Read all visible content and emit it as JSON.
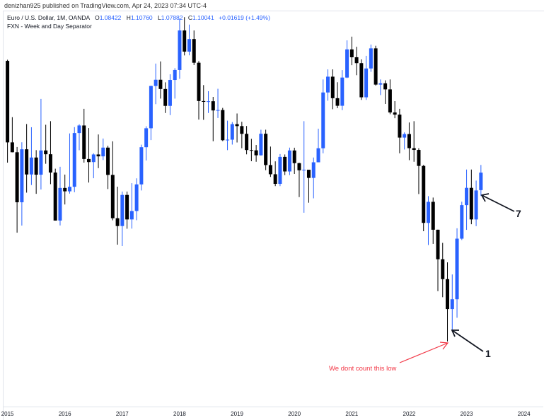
{
  "publisher_line": "denizhan925 published on TradingView.com, Apr 24, 2023 07:34 UTC-4",
  "legend": {
    "symbol": "Euro / U.S. Dollar, 1M, OANDA",
    "open_label": "O",
    "open": "1.08422",
    "high_label": "H",
    "high": "1.10760",
    "low_label": "L",
    "low": "1.07882",
    "close_label": "C",
    "close": "1.10041",
    "change": "+0.01619 (+1.49%)",
    "indicator": "FXN - Week and Day Separator"
  },
  "annotations": {
    "red_note": "We dont count this low",
    "label_1": "1",
    "label_7": "7"
  },
  "colors": {
    "up": "#2962ff",
    "down": "#000000",
    "note": "#f23645",
    "arrow": "#131722"
  },
  "chart_data": {
    "type": "candlestick",
    "yscale": "log",
    "grid": false,
    "x_tick_labels": [
      "2015",
      "2016",
      "2017",
      "2018",
      "2019",
      "2020",
      "2021",
      "2022",
      "2023",
      "2024"
    ],
    "dates": [
      "2015-01",
      "2015-02",
      "2015-03",
      "2015-04",
      "2015-05",
      "2015-06",
      "2015-07",
      "2015-08",
      "2015-09",
      "2015-10",
      "2015-11",
      "2015-12",
      "2016-01",
      "2016-02",
      "2016-03",
      "2016-04",
      "2016-05",
      "2016-06",
      "2016-07",
      "2016-08",
      "2016-09",
      "2016-10",
      "2016-11",
      "2016-12",
      "2017-01",
      "2017-02",
      "2017-03",
      "2017-04",
      "2017-05",
      "2017-06",
      "2017-07",
      "2017-08",
      "2017-09",
      "2017-10",
      "2017-11",
      "2017-12",
      "2018-01",
      "2018-02",
      "2018-03",
      "2018-04",
      "2018-05",
      "2018-06",
      "2018-07",
      "2018-08",
      "2018-09",
      "2018-10",
      "2018-11",
      "2018-12",
      "2019-01",
      "2019-02",
      "2019-03",
      "2019-04",
      "2019-05",
      "2019-06",
      "2019-07",
      "2019-08",
      "2019-09",
      "2019-10",
      "2019-11",
      "2019-12",
      "2020-01",
      "2020-02",
      "2020-03",
      "2020-04",
      "2020-05",
      "2020-06",
      "2020-07",
      "2020-08",
      "2020-09",
      "2020-10",
      "2020-11",
      "2020-12",
      "2021-01",
      "2021-02",
      "2021-03",
      "2021-04",
      "2021-05",
      "2021-06",
      "2021-07",
      "2021-08",
      "2021-09",
      "2021-10",
      "2021-11",
      "2021-12",
      "2022-01",
      "2022-02",
      "2022-03",
      "2022-04",
      "2022-05",
      "2022-06",
      "2022-07",
      "2022-08",
      "2022-09",
      "2022-10",
      "2022-11",
      "2022-12",
      "2023-01",
      "2023-02",
      "2023-03",
      "2023-04"
    ],
    "ohlc": [
      [
        1.2098,
        1.2109,
        1.1098,
        1.129
      ],
      [
        1.129,
        1.1534,
        1.1195,
        1.1196
      ],
      [
        1.1196,
        1.1246,
        1.0458,
        1.0731
      ],
      [
        1.0731,
        1.1291,
        1.0521,
        1.1224
      ],
      [
        1.1224,
        1.1467,
        1.0819,
        1.0987
      ],
      [
        1.0987,
        1.1436,
        1.0889,
        1.1146
      ],
      [
        1.1146,
        1.1216,
        1.0808,
        1.0985
      ],
      [
        1.0985,
        1.1714,
        1.0848,
        1.1213
      ],
      [
        1.1213,
        1.146,
        1.1087,
        1.1177
      ],
      [
        1.1177,
        1.1495,
        1.0897,
        1.1005
      ],
      [
        1.1005,
        1.1041,
        1.0566,
        1.0566
      ],
      [
        1.0566,
        1.1059,
        1.0522,
        1.0862
      ],
      [
        1.0862,
        1.0986,
        1.0711,
        1.0831
      ],
      [
        1.0831,
        1.1376,
        1.081,
        1.0873
      ],
      [
        1.0873,
        1.1437,
        1.0823,
        1.138
      ],
      [
        1.138,
        1.1465,
        1.1215,
        1.1453
      ],
      [
        1.1453,
        1.1616,
        1.1098,
        1.1132
      ],
      [
        1.1132,
        1.1428,
        1.0912,
        1.1103
      ],
      [
        1.1103,
        1.1186,
        1.0952,
        1.1175
      ],
      [
        1.1175,
        1.1366,
        1.1046,
        1.1157
      ],
      [
        1.1157,
        1.1327,
        1.1122,
        1.124
      ],
      [
        1.124,
        1.1258,
        1.0852,
        1.0983
      ],
      [
        1.0983,
        1.13,
        1.0568,
        1.0587
      ],
      [
        1.0587,
        1.0874,
        1.0352,
        1.0517
      ],
      [
        1.0517,
        1.0829,
        1.034,
        1.0798
      ],
      [
        1.0798,
        1.0829,
        1.0493,
        1.0576
      ],
      [
        1.0576,
        1.0906,
        1.0494,
        1.0652
      ],
      [
        1.0652,
        1.0951,
        1.0569,
        1.0895
      ],
      [
        1.0895,
        1.1268,
        1.0839,
        1.1244
      ],
      [
        1.1244,
        1.1445,
        1.1118,
        1.1426
      ],
      [
        1.1426,
        1.1846,
        1.1312,
        1.1843
      ],
      [
        1.1843,
        1.207,
        1.1662,
        1.1906
      ],
      [
        1.1906,
        1.2092,
        1.1717,
        1.1813
      ],
      [
        1.1813,
        1.188,
        1.1575,
        1.1645
      ],
      [
        1.1645,
        1.1961,
        1.1554,
        1.1904
      ],
      [
        1.1904,
        1.2023,
        1.1717,
        1.2005
      ],
      [
        1.2005,
        1.2537,
        1.1915,
        1.2414
      ],
      [
        1.2414,
        1.2555,
        1.2154,
        1.2193
      ],
      [
        1.2193,
        1.2476,
        1.2155,
        1.2324
      ],
      [
        1.2324,
        1.2414,
        1.2055,
        1.2079
      ],
      [
        1.2079,
        1.2096,
        1.151,
        1.1693
      ],
      [
        1.1693,
        1.1852,
        1.1508,
        1.1685
      ],
      [
        1.1685,
        1.1791,
        1.1575,
        1.1691
      ],
      [
        1.1691,
        1.1734,
        1.1301,
        1.16
      ],
      [
        1.16,
        1.1815,
        1.1526,
        1.1604
      ],
      [
        1.1604,
        1.1625,
        1.1302,
        1.1311
      ],
      [
        1.1311,
        1.15,
        1.1216,
        1.1316
      ],
      [
        1.1316,
        1.1486,
        1.1269,
        1.1466
      ],
      [
        1.1466,
        1.157,
        1.1289,
        1.1447
      ],
      [
        1.1447,
        1.1489,
        1.1234,
        1.1372
      ],
      [
        1.1372,
        1.1448,
        1.1176,
        1.1217
      ],
      [
        1.1217,
        1.1324,
        1.1111,
        1.1214
      ],
      [
        1.1214,
        1.1265,
        1.1106,
        1.1167
      ],
      [
        1.1167,
        1.1412,
        1.1164,
        1.1373
      ],
      [
        1.1373,
        1.1412,
        1.1027,
        1.1075
      ],
      [
        1.1075,
        1.125,
        1.0964,
        1.0989
      ],
      [
        1.0989,
        1.111,
        1.0879,
        1.09
      ],
      [
        1.09,
        1.1179,
        1.0879,
        1.1152
      ],
      [
        1.1152,
        1.1175,
        1.0981,
        1.1015
      ],
      [
        1.1015,
        1.124,
        1.0981,
        1.1213
      ],
      [
        1.1213,
        1.1239,
        1.0992,
        1.1093
      ],
      [
        1.1093,
        1.1097,
        1.0778,
        1.1026
      ],
      [
        1.1026,
        1.1495,
        1.0636,
        1.1031
      ],
      [
        1.1031,
        1.1019,
        1.0727,
        1.0955
      ],
      [
        1.0955,
        1.1146,
        1.0767,
        1.1101
      ],
      [
        1.1101,
        1.1422,
        1.1101,
        1.1234
      ],
      [
        1.1234,
        1.1909,
        1.1186,
        1.1778
      ],
      [
        1.1778,
        1.2011,
        1.1696,
        1.1937
      ],
      [
        1.1937,
        1.2011,
        1.1612,
        1.1721
      ],
      [
        1.1721,
        1.1881,
        1.1622,
        1.1646
      ],
      [
        1.1646,
        1.2004,
        1.1603,
        1.1928
      ],
      [
        1.1928,
        1.231,
        1.1922,
        1.2216
      ],
      [
        1.2216,
        1.2349,
        1.2054,
        1.2135
      ],
      [
        1.2135,
        1.2243,
        1.1952,
        1.2075
      ],
      [
        1.2075,
        1.2113,
        1.1704,
        1.173
      ],
      [
        1.173,
        1.215,
        1.1704,
        1.202
      ],
      [
        1.202,
        1.2266,
        1.1986,
        1.2227
      ],
      [
        1.2227,
        1.2254,
        1.1847,
        1.1857
      ],
      [
        1.1857,
        1.1909,
        1.1752,
        1.187
      ],
      [
        1.187,
        1.19,
        1.1664,
        1.1809
      ],
      [
        1.1809,
        1.1909,
        1.1563,
        1.158
      ],
      [
        1.158,
        1.1692,
        1.1524,
        1.1559
      ],
      [
        1.1559,
        1.1616,
        1.1186,
        1.1336
      ],
      [
        1.1336,
        1.1386,
        1.1222,
        1.137
      ],
      [
        1.137,
        1.1482,
        1.1121,
        1.1235
      ],
      [
        1.1235,
        1.1495,
        1.1106,
        1.1218
      ],
      [
        1.1218,
        1.1234,
        1.0806,
        1.1067
      ],
      [
        1.1067,
        1.1076,
        1.0471,
        1.0545
      ],
      [
        1.0545,
        1.0787,
        1.0349,
        1.0735
      ],
      [
        1.0735,
        1.0774,
        1.0359,
        1.0484
      ],
      [
        1.0484,
        1.0485,
        0.9952,
        1.0225
      ],
      [
        1.0225,
        1.0368,
        0.9901,
        1.0054
      ],
      [
        1.0054,
        1.0198,
        0.9536,
        0.9802
      ],
      [
        0.9802,
        1.0094,
        0.9632,
        0.9884
      ],
      [
        0.9884,
        1.0497,
        0.973,
        1.0405
      ],
      [
        1.0405,
        1.0736,
        1.0393,
        1.0705
      ],
      [
        1.0705,
        1.1033,
        1.0483,
        1.0863
      ],
      [
        1.0863,
        1.1033,
        1.0533,
        1.0576
      ],
      [
        1.0576,
        1.093,
        1.0516,
        1.0839
      ],
      [
        1.08422,
        1.1076,
        1.07882,
        1.10041
      ]
    ]
  }
}
